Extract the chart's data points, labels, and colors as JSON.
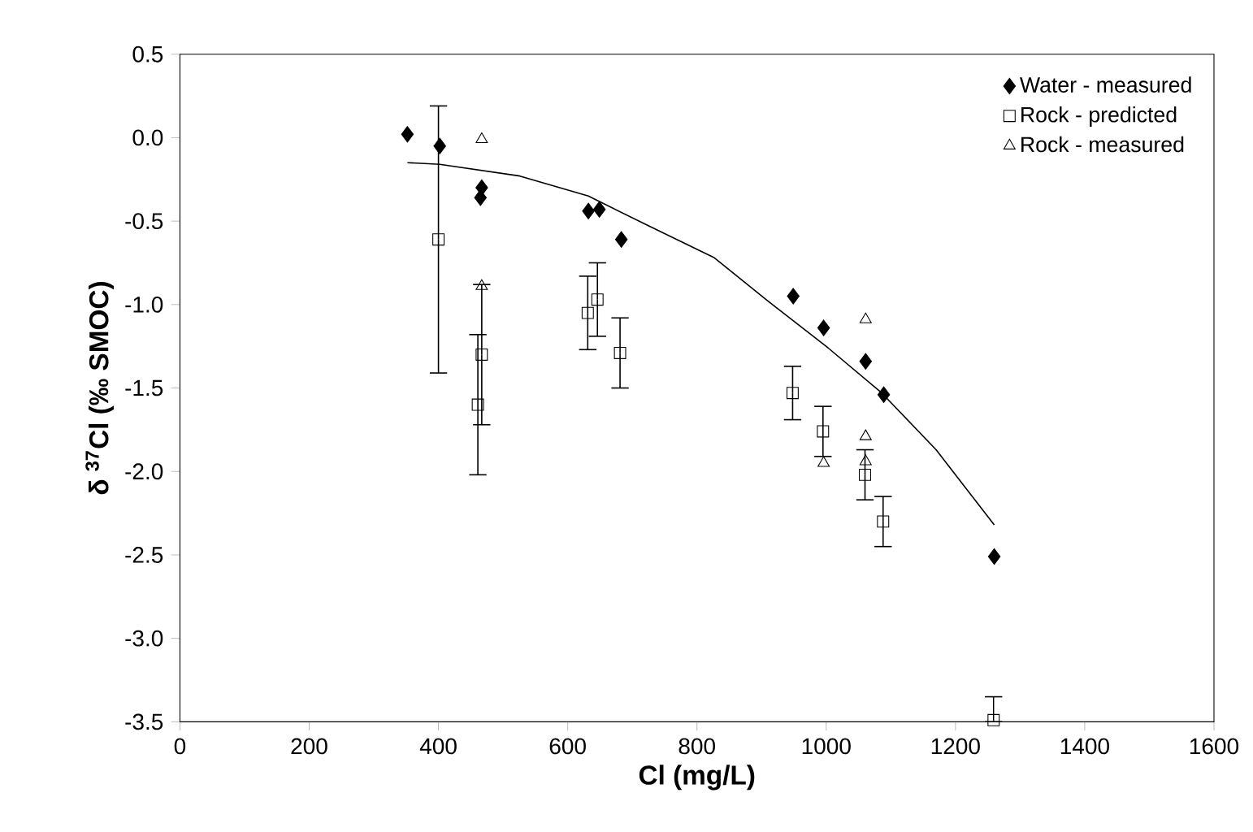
{
  "chart_data": {
    "type": "scatter",
    "xlabel": "Cl (mg/L)",
    "ylabel": "δ $^{37}$Cl (‰ SMOC)",
    "xlim": [
      0,
      1600
    ],
    "xticks": [
      0,
      200,
      400,
      600,
      800,
      1000,
      1200,
      1400,
      1600
    ],
    "ylim": [
      -3.5,
      0.5
    ],
    "yticks": [
      0.5,
      {
        "value": 0,
        "label": "0.0"
      },
      -0.5,
      {
        "value": -1,
        "label": "-1.0"
      },
      -1.5,
      {
        "value": -2,
        "label": "-2.0"
      },
      -2.5,
      {
        "value": -3,
        "label": "-3.0"
      },
      -3.5
    ],
    "grid": false,
    "legend": "top right",
    "series": [
      {
        "name": "Water - measured",
        "color": "#000000",
        "marker": "diamond",
        "x": [
          352,
          402,
          467,
          465,
          632,
          649,
          683,
          949,
          996,
          1061,
          1089,
          1260
        ],
        "values": [
          0.02,
          -0.05,
          -0.3,
          -0.36,
          -0.44,
          -0.43,
          -0.61,
          -0.95,
          -1.14,
          -1.34,
          -1.54,
          -2.51
        ]
      },
      {
        "name": "Rock - predicted",
        "color": "#000000",
        "marker": "square",
        "x": [
          400,
          467,
          461,
          631,
          646,
          681,
          948,
          995,
          1060,
          1088,
          1259
        ],
        "values": [
          -0.61,
          -1.3,
          -1.6,
          -1.05,
          -0.97,
          -1.29,
          -1.53,
          -1.76,
          -2.02,
          -2.3,
          -3.49
        ],
        "errors": [
          0.8,
          0.42,
          0.42,
          0.22,
          0.22,
          0.21,
          0.16,
          0.15,
          0.15,
          0.15,
          [
            -3.5,
            -3.35
          ]
        ]
      },
      {
        "name": "Rock - measured",
        "color": "#000000",
        "marker": "triangle",
        "x": [
          467,
          467,
          1061,
          1061,
          996,
          1061
        ],
        "values": [
          -0.01,
          -0.89,
          -1.09,
          -1.79,
          -1.95,
          -1.94
        ]
      },
      {
        "type": "line",
        "color": "#000000",
        "marker": "none",
        "line_style": "solid",
        "x": [
          352,
          402,
          526,
          632,
          726,
          827,
          910,
          1003,
          1086,
          1170,
          1260
        ],
        "values": [
          -0.15,
          -0.16,
          -0.23,
          -0.35,
          -0.53,
          -0.72,
          -0.98,
          -1.26,
          -1.53,
          -1.87,
          -2.32
        ]
      }
    ]
  }
}
